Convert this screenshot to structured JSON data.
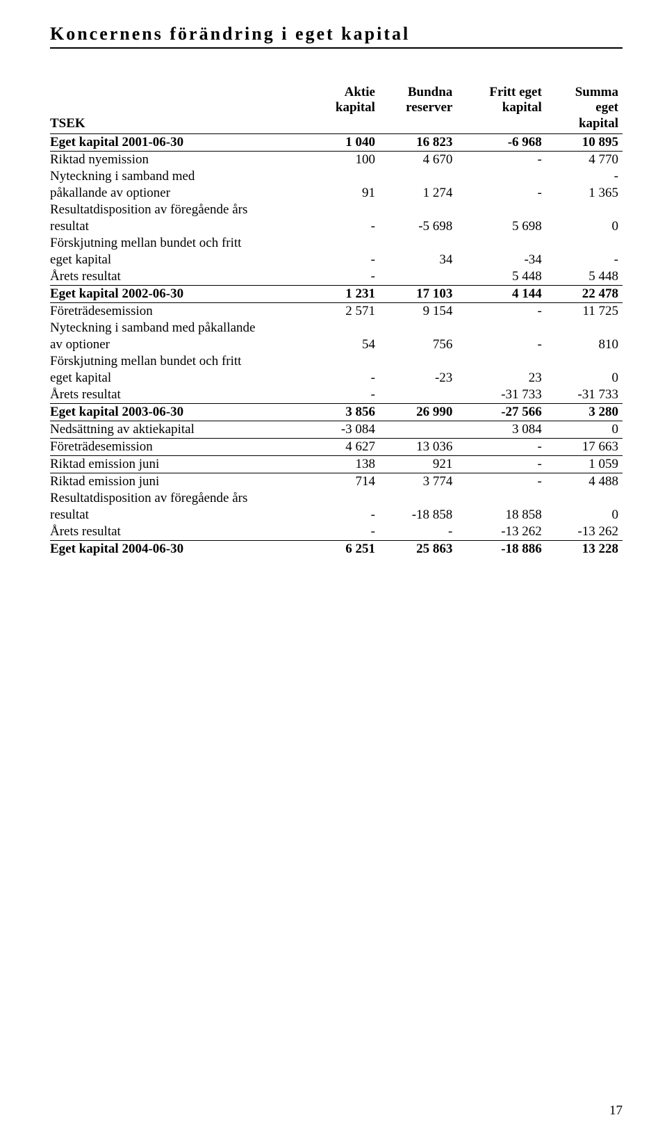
{
  "title": "Koncernens förändring i eget kapital",
  "page_number": "17",
  "columns": {
    "label": "TSEK",
    "c2_l1": "Aktie",
    "c2_l2": "kapital",
    "c3_l1": "Bundna",
    "c3_l2": "reserver",
    "c4_l1": "Fritt eget",
    "c4_l2": "kapital",
    "c5_l1": "Summa",
    "c5_l2": "eget",
    "c5_l3": "kapital"
  },
  "rows": [
    {
      "label": "Eget kapital 2001-06-30",
      "c2": "1 040",
      "c3": "16 823",
      "c4": "-6 968",
      "c5": "10 895",
      "bold": true,
      "sep_below": true
    },
    {
      "label": "Riktad nyemission",
      "c2": "100",
      "c3": "4 670",
      "c4": "-",
      "c5": "4 770"
    },
    {
      "label": "Nyteckning i samband med",
      "c2": "",
      "c3": "",
      "c4": "",
      "c5": "-"
    },
    {
      "label": "påkallande av optioner",
      "c2": "91",
      "c3": "1 274",
      "c4": "-",
      "c5": "1 365"
    },
    {
      "label": "Resultatdisposition av föregående års",
      "c2": "",
      "c3": "",
      "c4": "",
      "c5": ""
    },
    {
      "label": "resultat",
      "c2": "-",
      "c3": "-5 698",
      "c4": "5 698",
      "c5": "0"
    },
    {
      "label": "Förskjutning mellan bundet och fritt",
      "c2": "",
      "c3": "",
      "c4": "",
      "c5": ""
    },
    {
      "label": "eget kapital",
      "c2": "-",
      "c3": "34",
      "c4": "-34",
      "c5": "-"
    },
    {
      "label": "Årets resultat",
      "c2": "-",
      "c3": "",
      "c4": "5 448",
      "c5": "5 448"
    },
    {
      "label": "Eget kapital 2002-06-30",
      "c2": "1 231",
      "c3": "17 103",
      "c4": "4 144",
      "c5": "22 478",
      "bold": true,
      "sep_above": true,
      "sep_below": true
    },
    {
      "label": "Företrädesemission",
      "c2": "2 571",
      "c3": "9 154",
      "c4": "-",
      "c5": "11 725"
    },
    {
      "label": "Nyteckning i samband med påkallande",
      "c2": "",
      "c3": "",
      "c4": "",
      "c5": ""
    },
    {
      "label": "av optioner",
      "c2": "54",
      "c3": "756",
      "c4": "-",
      "c5": "810"
    },
    {
      "label": "Förskjutning mellan bundet och fritt",
      "c2": "",
      "c3": "",
      "c4": "",
      "c5": ""
    },
    {
      "label": "eget kapital",
      "c2": "-",
      "c3": "-23",
      "c4": "23",
      "c5": "0"
    },
    {
      "label": "Årets resultat",
      "c2": "-",
      "c3": "",
      "c4": "-31 733",
      "c5": "-31 733"
    },
    {
      "label": "Eget kapital 2003-06-30",
      "c2": "3 856",
      "c3": "26 990",
      "c4": "-27 566",
      "c5": "3 280",
      "bold": true,
      "sep_above": true,
      "sep_below": true
    },
    {
      "label": "Nedsättning av aktiekapital",
      "c2": "-3 084",
      "c3": "",
      "c4": "3 084",
      "c5": "0",
      "sep_below": true
    },
    {
      "label": "Företrädesemission",
      "c2": "4 627",
      "c3": "13 036",
      "c4": "-",
      "c5": "17 663",
      "sep_below": true
    },
    {
      "label": "Riktad emission juni",
      "c2": "138",
      "c3": "921",
      "c4": "-",
      "c5": "1 059",
      "sep_below": true
    },
    {
      "label": "Riktad emission juni",
      "c2": "714",
      "c3": "3 774",
      "c4": "-",
      "c5": "4 488"
    },
    {
      "label": "Resultatdisposition av föregående års",
      "c2": "",
      "c3": "",
      "c4": "",
      "c5": ""
    },
    {
      "label": "resultat",
      "c2": "-",
      "c3": "-18 858",
      "c4": "18 858",
      "c5": "0"
    },
    {
      "label": "Årets resultat",
      "c2": "-",
      "c3": "-",
      "c4": "-13 262",
      "c5": "-13 262"
    },
    {
      "label": "Eget kapital 2004-06-30",
      "c2": "6 251",
      "c3": "25 863",
      "c4": "-18 886",
      "c5": "13 228",
      "bold": true,
      "sep_above": true
    }
  ]
}
